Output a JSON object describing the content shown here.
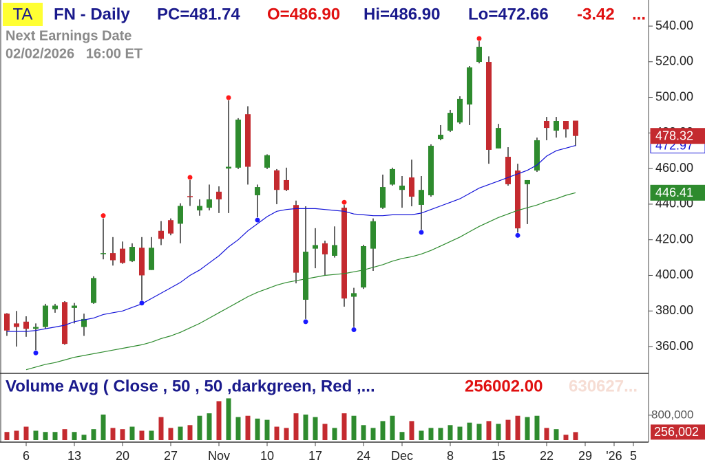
{
  "chart_data": {
    "type": "candlestick",
    "header": {
      "badge": "TA",
      "symbol": "FN - Daily",
      "pc": "PC=481.74",
      "open": "O=486.90",
      "high": "Hi=486.90",
      "low": "Lo=472.66",
      "change": "-3.42",
      "more": "..."
    },
    "earnings": {
      "title": "Next Earnings Date",
      "date": "02/02/2026   16:00 ET"
    },
    "ylim": [
      344.95,
      554.68
    ],
    "yticks": [
      {
        "value": 360,
        "label": "360.00"
      },
      {
        "value": 380,
        "label": "380.00"
      },
      {
        "value": 400,
        "label": "400.00"
      },
      {
        "value": 420,
        "label": "420.00"
      },
      {
        "value": 440,
        "label": "440.00"
      },
      {
        "value": 460,
        "label": "460.00"
      },
      {
        "value": 480,
        "label": "480.00"
      },
      {
        "value": 500,
        "label": "500.00"
      },
      {
        "value": 520,
        "label": "520.00"
      },
      {
        "value": 540,
        "label": "540.00"
      }
    ],
    "xlim": [
      -0.714,
      66.43
    ],
    "xticks": [
      {
        "value": 2,
        "label": "6"
      },
      {
        "value": 7,
        "label": "13"
      },
      {
        "value": 12,
        "label": "20"
      },
      {
        "value": 17,
        "label": "27"
      },
      {
        "value": 22,
        "label": "Nov"
      },
      {
        "value": 27,
        "label": "10"
      },
      {
        "value": 32,
        "label": "17"
      },
      {
        "value": 37,
        "label": "24"
      },
      {
        "value": 41,
        "label": "Dec"
      },
      {
        "value": 46,
        "label": "8"
      },
      {
        "value": 51,
        "label": "15"
      },
      {
        "value": 56,
        "label": "22"
      },
      {
        "value": 60,
        "label": "29"
      },
      {
        "value": 63,
        "label": "'26"
      },
      {
        "value": 65,
        "label": "5"
      }
    ],
    "up_color": "#2e8b2e",
    "down_color": "#c42a2f",
    "ohlc": {
      "open": [
        378.5,
        373,
        374,
        370,
        371,
        381,
        385,
        381.7,
        371,
        384.5,
        412,
        412.5,
        415,
        408,
        415.5,
        403,
        425,
        431,
        429,
        444.5,
        436.5,
        438,
        447,
        460,
        460.5,
        490.5,
        445,
        460.5,
        459,
        453.5,
        439.5,
        386.3,
        415,
        418,
        411,
        438,
        388,
        393.2,
        415,
        438,
        451,
        448,
        455,
        439.6,
        445,
        476.6,
        481.3,
        485.9,
        496,
        519.9,
        519.9,
        471.3,
        466.6,
        458.9,
        451.2,
        458.9,
        486.7,
        481.3,
        486.7,
        486.9
      ],
      "high": [
        378.8,
        380,
        377,
        373,
        384,
        384,
        385.5,
        384.5,
        378.5,
        399.5,
        432,
        421.5,
        419,
        418,
        421.5,
        421.5,
        430.5,
        432,
        440.5,
        453.5,
        442.7,
        451,
        450,
        498.3,
        488.3,
        495,
        451,
        468,
        459.7,
        460.5,
        442,
        438.8,
        426.5,
        419.5,
        427.5,
        439.5,
        393,
        417.2,
        432,
        456.6,
        460.5,
        455.8,
        465,
        455.8,
        473.6,
        484.4,
        492.9,
        500.6,
        517.6,
        531.5,
        523,
        485.1,
        472,
        462.7,
        453.5,
        477.4,
        489,
        489,
        486.7,
        486.9
      ],
      "low": [
        366,
        360,
        365.5,
        358,
        370,
        379,
        361,
        373,
        366,
        384,
        409,
        405.5,
        406.5,
        407.5,
        386,
        403,
        417,
        422.5,
        418,
        439,
        433.5,
        436.5,
        435,
        435,
        459.7,
        451,
        432.6,
        459.7,
        440,
        447.3,
        395.5,
        375.5,
        404,
        400,
        410,
        382.4,
        371,
        392.4,
        402.5,
        437.3,
        450.4,
        438,
        438.8,
        425.7,
        444.2,
        475.9,
        480.5,
        485.1,
        484.4,
        519.1,
        462.7,
        471.3,
        450.4,
        424,
        428.8,
        458.1,
        475.9,
        477.4,
        477.4,
        472.66
      ],
      "close": [
        369,
        371,
        370,
        371,
        383,
        383,
        361.5,
        383,
        375.5,
        398.5,
        412.5,
        408.5,
        407,
        416,
        400,
        415.5,
        420.5,
        423.5,
        439,
        444,
        439,
        442.7,
        442.7,
        461,
        487.5,
        461,
        449.6,
        467.5,
        448,
        448,
        401.5,
        413.3,
        417,
        411.8,
        417,
        387,
        390,
        416.4,
        430.4,
        449.6,
        459.7,
        450.4,
        444.2,
        448,
        472.8,
        479,
        491.3,
        499.1,
        516.8,
        528.4,
        470.5,
        482.8,
        451.2,
        426.4,
        453.5,
        475.9,
        482.8,
        486.7,
        482,
        478.32
      ]
    },
    "swing_highs": [
      10,
      19,
      23,
      35,
      49
    ],
    "swing_lows": [
      3,
      14,
      26,
      31,
      36,
      43,
      53
    ],
    "high_marker_color": "#ff1a1a",
    "low_marker_color": "#1a1aff",
    "moving_averages": [
      {
        "color": "#1414d8",
        "values": [
          368.5,
          368.5,
          368.5,
          369,
          370,
          371,
          372,
          374,
          375,
          376,
          378,
          379,
          380,
          382,
          384,
          387,
          390,
          393,
          396,
          400,
          403,
          407,
          411,
          416,
          420,
          425,
          429,
          433,
          436,
          437,
          437.5,
          437.5,
          437.5,
          437,
          436.5,
          436,
          434.5,
          434,
          433.5,
          433.5,
          434,
          434,
          434,
          435,
          437,
          439,
          441,
          443,
          446,
          449,
          451,
          453,
          455,
          457,
          459,
          462,
          467,
          470,
          471.5,
          472.97
        ]
      },
      {
        "color": "#2e8b2e",
        "values": [
          null,
          null,
          347,
          348.5,
          350,
          351,
          352.5,
          354,
          355,
          356,
          357,
          358,
          359,
          360,
          361,
          362.5,
          364.5,
          366,
          368,
          370.5,
          373,
          376,
          379,
          382,
          385,
          388,
          390.5,
          392.5,
          394.5,
          396,
          397,
          398,
          399,
          400,
          400.5,
          401,
          402,
          403,
          404.5,
          406,
          408,
          409.5,
          410.5,
          412,
          414,
          416.5,
          419,
          421.5,
          424.5,
          427.5,
          430,
          432.5,
          434.5,
          436.5,
          438,
          439.5,
          441.5,
          443,
          445,
          446.41
        ]
      }
    ],
    "volume": {
      "title": "Volume Avg ( Close , 50 , 50 ,darkgreen, Red ,...",
      "value_label": "256002.00",
      "avg_label": "630627...",
      "ylim": [
        0,
        2100000
      ],
      "yticks": [
        {
          "value": 800000,
          "label": "800,000"
        }
      ],
      "values": [
        260000,
        300000,
        430000,
        300000,
        260000,
        260000,
        350000,
        260000,
        170000,
        350000,
        820000,
        390000,
        350000,
        430000,
        300000,
        300000,
        740000,
        390000,
        430000,
        480000,
        780000,
        860000,
        1250000,
        1340000,
        740000,
        780000,
        690000,
        650000,
        430000,
        390000,
        860000,
        820000,
        740000,
        520000,
        390000,
        860000,
        780000,
        480000,
        390000,
        610000,
        780000,
        260000,
        610000,
        300000,
        390000,
        390000,
        480000,
        430000,
        560000,
        520000,
        610000,
        520000,
        650000,
        780000,
        740000,
        780000,
        390000,
        350000,
        170000,
        256002
      ],
      "last_value_label": "256,002"
    }
  }
}
